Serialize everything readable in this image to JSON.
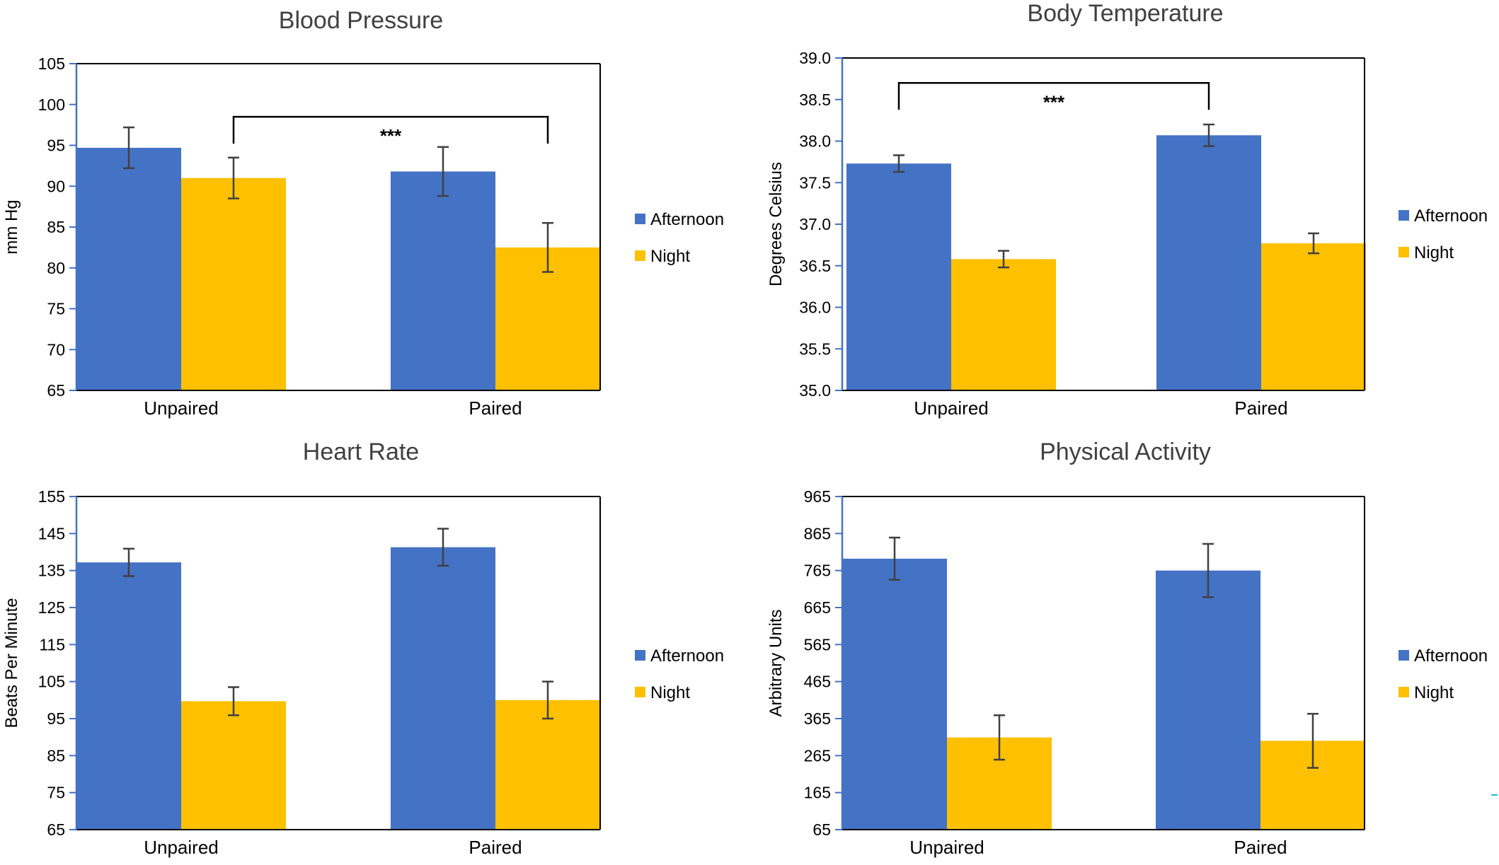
{
  "colors": {
    "afternoon": "#4472C4",
    "night": "#FFC000",
    "axis": "#4472C4",
    "error": "#404040"
  },
  "chart_data": [
    {
      "id": "bp",
      "type": "bar",
      "title": "Blood Pressure",
      "ylabel": "mm Hg",
      "xlabel": "",
      "categories": [
        "Unpaired",
        "Paired"
      ],
      "ylim": [
        65,
        105
      ],
      "yticks": [
        65,
        70,
        75,
        80,
        85,
        90,
        95,
        100,
        105
      ],
      "ytick_labels": [
        "65",
        "70",
        "75",
        "80",
        "85",
        "90",
        "95",
        "100",
        "105"
      ],
      "series": [
        {
          "name": "Afternoon",
          "values": [
            94.7,
            91.8
          ],
          "errors": [
            2.5,
            3.0
          ]
        },
        {
          "name": "Night",
          "values": [
            91.0,
            82.5
          ],
          "errors": [
            2.5,
            3.0
          ]
        }
      ],
      "legend": [
        "Afternoon",
        "Night"
      ],
      "legend_position": "right",
      "significance": {
        "label": "***",
        "from_category": 0,
        "from_series": 1,
        "to_category": 1,
        "to_series": 1,
        "level": 98.5
      }
    },
    {
      "id": "bt",
      "type": "bar",
      "title": "Body Temperature",
      "ylabel": "Degrees Celsius",
      "xlabel": "",
      "categories": [
        "Unpaired",
        "Paired"
      ],
      "ylim": [
        35.0,
        39.0
      ],
      "yticks": [
        35.0,
        35.5,
        36.0,
        36.5,
        37.0,
        37.5,
        38.0,
        38.5,
        39.0
      ],
      "ytick_labels": [
        "35.0",
        "35.5",
        "36.0",
        "36.5",
        "37.0",
        "37.5",
        "38.0",
        "38.5",
        "39.0"
      ],
      "series": [
        {
          "name": "Afternoon",
          "values": [
            37.73,
            38.07
          ],
          "errors": [
            0.1,
            0.13
          ]
        },
        {
          "name": "Night",
          "values": [
            36.58,
            36.77
          ],
          "errors": [
            0.1,
            0.12
          ]
        }
      ],
      "legend": [
        "Afternoon",
        "Night"
      ],
      "legend_position": "right",
      "significance": {
        "label": "***",
        "from_category": 0,
        "from_series": 0,
        "to_category": 1,
        "to_series": 0,
        "level": 38.7
      }
    },
    {
      "id": "hr",
      "type": "bar",
      "title": "Heart Rate",
      "ylabel": "Beats Per Minute",
      "xlabel": "",
      "categories": [
        "Unpaired",
        "Paired"
      ],
      "ylim": [
        65,
        155
      ],
      "yticks": [
        65,
        75,
        85,
        95,
        105,
        115,
        125,
        135,
        145,
        155
      ],
      "ytick_labels": [
        "65",
        "75",
        "85",
        "95",
        "105",
        "115",
        "125",
        "135",
        "145",
        "155"
      ],
      "series": [
        {
          "name": "Afternoon",
          "values": [
            137.2,
            141.3
          ],
          "errors": [
            3.7,
            5.0
          ]
        },
        {
          "name": "Night",
          "values": [
            99.7,
            100.0
          ],
          "errors": [
            3.8,
            5.0
          ]
        }
      ],
      "legend": [
        "Afternoon",
        "Night"
      ],
      "legend_position": "right"
    },
    {
      "id": "pa",
      "type": "bar",
      "title": "Physical Activity",
      "ylabel": "Arbitrary Units",
      "xlabel": "",
      "categories": [
        "Unpaired",
        "Paired"
      ],
      "ylim": [
        65,
        965
      ],
      "yticks": [
        65,
        165,
        265,
        365,
        465,
        565,
        665,
        765,
        865,
        965
      ],
      "ytick_labels": [
        "65",
        "165",
        "265",
        "365",
        "465",
        "565",
        "665",
        "765",
        "865",
        "965"
      ],
      "series": [
        {
          "name": "Afternoon",
          "values": [
            797,
            765
          ],
          "errors": [
            57,
            72
          ]
        },
        {
          "name": "Night",
          "values": [
            314,
            305
          ],
          "errors": [
            60,
            73
          ]
        }
      ],
      "legend": [
        "Afternoon",
        "Night"
      ],
      "legend_position": "right"
    }
  ]
}
